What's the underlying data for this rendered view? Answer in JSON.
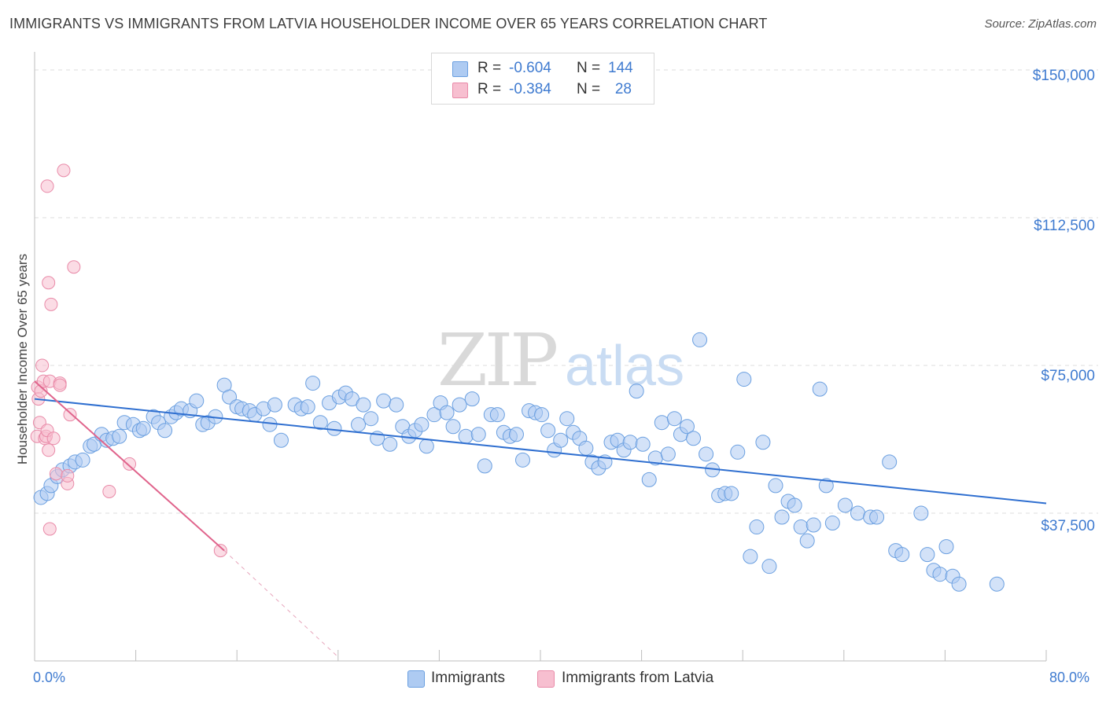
{
  "title": "IMMIGRANTS VS IMMIGRANTS FROM LATVIA HOUSEHOLDER INCOME OVER 65 YEARS CORRELATION CHART",
  "source": "Source: ZipAtlas.com",
  "watermark": {
    "zip": "ZIP",
    "atlas": "atlas"
  },
  "legend_top": {
    "rows": [
      {
        "r_label": "R =",
        "r_value": "-0.604",
        "n_label": "N =",
        "n_value": "144"
      },
      {
        "r_label": "R =",
        "r_value": "-0.384",
        "n_label": "N =",
        "n_value": "28"
      }
    ]
  },
  "legend_bottom": {
    "series1": "Immigrants",
    "series2": "Immigrants from Latvia"
  },
  "colors": {
    "blue_fill": "#aecbf2",
    "blue_stroke": "#6a9fe0",
    "blue_line": "#2f6fd0",
    "pink_fill": "#f7bfd0",
    "pink_stroke": "#e98aa8",
    "pink_line": "#e0648c",
    "tick_text": "#3f7bd0",
    "grid": "#dddddd"
  },
  "chart_data": {
    "type": "scatter",
    "title": "IMMIGRANTS VS IMMIGRANTS FROM LATVIA HOUSEHOLDER INCOME OVER 65 YEARS CORRELATION CHART",
    "xlabel": "",
    "ylabel": "Householder Income Over 65 years",
    "xlim": [
      0,
      80
    ],
    "ylim": [
      0,
      153000
    ],
    "x_tick_labels": [
      "0.0%",
      "80.0%"
    ],
    "y_ticks": [
      {
        "value": 150000,
        "label": "$150,000"
      },
      {
        "value": 112500,
        "label": "$112,500"
      },
      {
        "value": 75000,
        "label": "$75,000"
      },
      {
        "value": 37500,
        "label": "$37,500"
      }
    ],
    "grid": true,
    "series": [
      {
        "name": "Immigrants",
        "points": [
          [
            0.5,
            41500
          ],
          [
            1.0,
            42500
          ],
          [
            1.3,
            44500
          ],
          [
            1.8,
            46800
          ],
          [
            2.2,
            48500
          ],
          [
            2.8,
            49500
          ],
          [
            3.2,
            50500
          ],
          [
            3.8,
            51000
          ],
          [
            4.4,
            54500
          ],
          [
            4.7,
            55000
          ],
          [
            5.3,
            57500
          ],
          [
            5.7,
            56000
          ],
          [
            6.2,
            56500
          ],
          [
            6.7,
            57000
          ],
          [
            7.1,
            60500
          ],
          [
            7.8,
            60000
          ],
          [
            8.3,
            58500
          ],
          [
            8.6,
            59000
          ],
          [
            9.4,
            62000
          ],
          [
            9.8,
            60500
          ],
          [
            10.3,
            58500
          ],
          [
            10.8,
            62000
          ],
          [
            11.2,
            63000
          ],
          [
            11.6,
            64000
          ],
          [
            12.3,
            63500
          ],
          [
            12.8,
            66000
          ],
          [
            13.3,
            60000
          ],
          [
            13.7,
            60500
          ],
          [
            14.3,
            62000
          ],
          [
            15.0,
            70000
          ],
          [
            15.4,
            67000
          ],
          [
            16.0,
            64500
          ],
          [
            16.4,
            64000
          ],
          [
            17.0,
            63500
          ],
          [
            17.4,
            62500
          ],
          [
            18.1,
            64000
          ],
          [
            18.6,
            60000
          ],
          [
            19.0,
            65000
          ],
          [
            19.5,
            56000
          ],
          [
            20.6,
            65000
          ],
          [
            21.1,
            64000
          ],
          [
            21.6,
            64500
          ],
          [
            22.0,
            70500
          ],
          [
            22.6,
            60500
          ],
          [
            23.3,
            65500
          ],
          [
            23.7,
            59000
          ],
          [
            24.1,
            67000
          ],
          [
            24.6,
            68000
          ],
          [
            25.1,
            66500
          ],
          [
            25.6,
            60000
          ],
          [
            26.0,
            65000
          ],
          [
            26.6,
            61500
          ],
          [
            27.1,
            56500
          ],
          [
            27.6,
            66000
          ],
          [
            28.1,
            55000
          ],
          [
            28.6,
            65000
          ],
          [
            29.1,
            59500
          ],
          [
            29.6,
            57000
          ],
          [
            30.1,
            58500
          ],
          [
            30.6,
            60000
          ],
          [
            31.0,
            54500
          ],
          [
            31.6,
            62500
          ],
          [
            32.1,
            65500
          ],
          [
            32.6,
            63000
          ],
          [
            33.1,
            59500
          ],
          [
            33.6,
            65000
          ],
          [
            34.1,
            57000
          ],
          [
            34.6,
            66500
          ],
          [
            35.1,
            57500
          ],
          [
            35.6,
            49500
          ],
          [
            36.1,
            62500
          ],
          [
            36.6,
            62500
          ],
          [
            37.1,
            58000
          ],
          [
            37.6,
            57000
          ],
          [
            38.1,
            57500
          ],
          [
            38.6,
            51000
          ],
          [
            39.1,
            63500
          ],
          [
            39.6,
            63000
          ],
          [
            40.1,
            62500
          ],
          [
            40.6,
            58500
          ],
          [
            41.1,
            53500
          ],
          [
            41.6,
            56000
          ],
          [
            42.1,
            61500
          ],
          [
            42.6,
            58000
          ],
          [
            43.1,
            56500
          ],
          [
            43.6,
            54000
          ],
          [
            44.1,
            50500
          ],
          [
            44.6,
            49000
          ],
          [
            45.1,
            50500
          ],
          [
            45.6,
            55500
          ],
          [
            46.1,
            56000
          ],
          [
            46.6,
            53500
          ],
          [
            47.1,
            55500
          ],
          [
            47.6,
            68500
          ],
          [
            48.1,
            55000
          ],
          [
            48.6,
            46000
          ],
          [
            49.1,
            51500
          ],
          [
            49.6,
            60500
          ],
          [
            50.1,
            52500
          ],
          [
            50.6,
            61500
          ],
          [
            51.1,
            57500
          ],
          [
            51.6,
            59500
          ],
          [
            52.1,
            56500
          ],
          [
            52.6,
            81500
          ],
          [
            53.1,
            52500
          ],
          [
            53.6,
            48500
          ],
          [
            54.1,
            42000
          ],
          [
            54.6,
            42500
          ],
          [
            55.1,
            42500
          ],
          [
            55.6,
            53000
          ],
          [
            56.1,
            71500
          ],
          [
            56.6,
            26500
          ],
          [
            57.1,
            34000
          ],
          [
            57.6,
            55500
          ],
          [
            58.1,
            24000
          ],
          [
            58.6,
            44500
          ],
          [
            59.1,
            36500
          ],
          [
            59.6,
            40500
          ],
          [
            60.1,
            39500
          ],
          [
            60.6,
            34000
          ],
          [
            61.1,
            30500
          ],
          [
            61.6,
            34500
          ],
          [
            62.1,
            69000
          ],
          [
            62.6,
            44500
          ],
          [
            63.1,
            35000
          ],
          [
            64.1,
            39500
          ],
          [
            65.1,
            37500
          ],
          [
            66.1,
            36500
          ],
          [
            66.6,
            36500
          ],
          [
            67.6,
            50500
          ],
          [
            68.1,
            28000
          ],
          [
            68.6,
            27000
          ],
          [
            70.1,
            37500
          ],
          [
            70.6,
            27000
          ],
          [
            71.1,
            23000
          ],
          [
            71.6,
            22000
          ],
          [
            72.1,
            29000
          ],
          [
            72.6,
            21500
          ],
          [
            73.1,
            19500
          ],
          [
            76.1,
            19500
          ]
        ],
        "trend": {
          "x": [
            0,
            80
          ],
          "y": [
            66500,
            40000
          ]
        }
      },
      {
        "name": "Immigrants from Latvia",
        "points": [
          [
            0.2,
            57000
          ],
          [
            0.25,
            69500
          ],
          [
            0.3,
            66500
          ],
          [
            0.4,
            60500
          ],
          [
            0.5,
            68500
          ],
          [
            0.6,
            75000
          ],
          [
            0.7,
            71000
          ],
          [
            0.8,
            56500
          ],
          [
            0.9,
            57000
          ],
          [
            1.0,
            58500
          ],
          [
            1.1,
            53500
          ],
          [
            1.2,
            71000
          ],
          [
            1.0,
            120500
          ],
          [
            1.3,
            90500
          ],
          [
            1.1,
            96000
          ],
          [
            1.5,
            56500
          ],
          [
            1.7,
            47500
          ],
          [
            2.0,
            70500
          ],
          [
            2.0,
            70000
          ],
          [
            2.3,
            124500
          ],
          [
            2.6,
            45000
          ],
          [
            2.6,
            47000
          ],
          [
            2.8,
            62500
          ],
          [
            3.1,
            100000
          ],
          [
            5.9,
            43000
          ],
          [
            7.5,
            50000
          ],
          [
            1.2,
            33500
          ],
          [
            14.7,
            28000
          ]
        ],
        "trend": {
          "x": [
            0,
            15.0
          ],
          "y": [
            71000,
            28000
          ]
        },
        "trend_extension": {
          "x": [
            15.0,
            24.0
          ],
          "y": [
            28000,
            1000
          ]
        }
      }
    ]
  }
}
